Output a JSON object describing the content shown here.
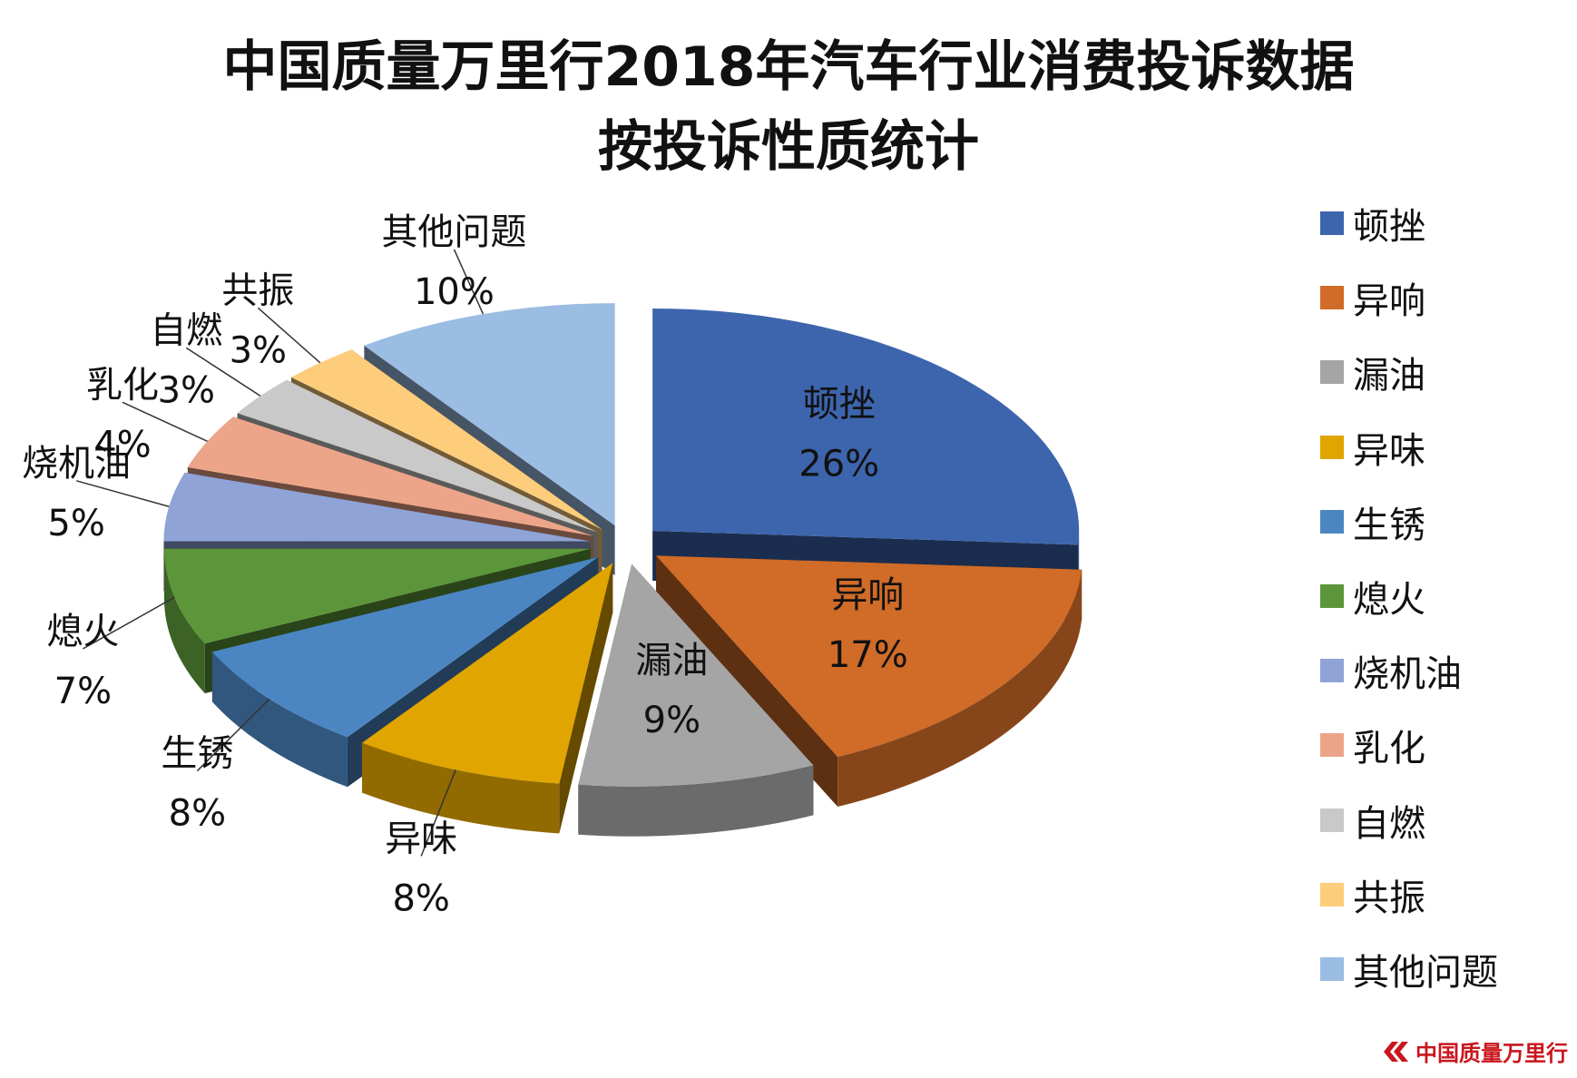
{
  "chart_data": {
    "type": "pie",
    "title": "中国质量万里行2018年汽车行业消费投诉数据",
    "subtitle": "按投诉性质统计",
    "legend_position": "right",
    "slices": [
      {
        "label": "顿挫",
        "value": 26,
        "value_label": "26%",
        "color": "#3d65ad"
      },
      {
        "label": "异响",
        "value": 17,
        "value_label": "17%",
        "color": "#d06b28"
      },
      {
        "label": "漏油",
        "value": 9,
        "value_label": "9%",
        "color": "#a5a5a5"
      },
      {
        "label": "异味",
        "value": 8,
        "value_label": "8%",
        "color": "#e0a500"
      },
      {
        "label": "生锈",
        "value": 8,
        "value_label": "8%",
        "color": "#4b86c2"
      },
      {
        "label": "熄火",
        "value": 7,
        "value_label": "7%",
        "color": "#5d963a"
      },
      {
        "label": "烧机油",
        "value": 5,
        "value_label": "5%",
        "color": "#8fa3d6"
      },
      {
        "label": "乳化",
        "value": 4,
        "value_label": "4%",
        "color": "#eda58a"
      },
      {
        "label": "自燃",
        "value": 3,
        "value_label": "3%",
        "color": "#c9c9c9"
      },
      {
        "label": "共振",
        "value": 3,
        "value_label": "3%",
        "color": "#fdcd7c"
      },
      {
        "label": "其他问题",
        "value": 10,
        "value_label": "10%",
        "color": "#9bbce3"
      }
    ]
  },
  "logo": {
    "text": "中国质量万里行",
    "color": "#c9161d"
  }
}
